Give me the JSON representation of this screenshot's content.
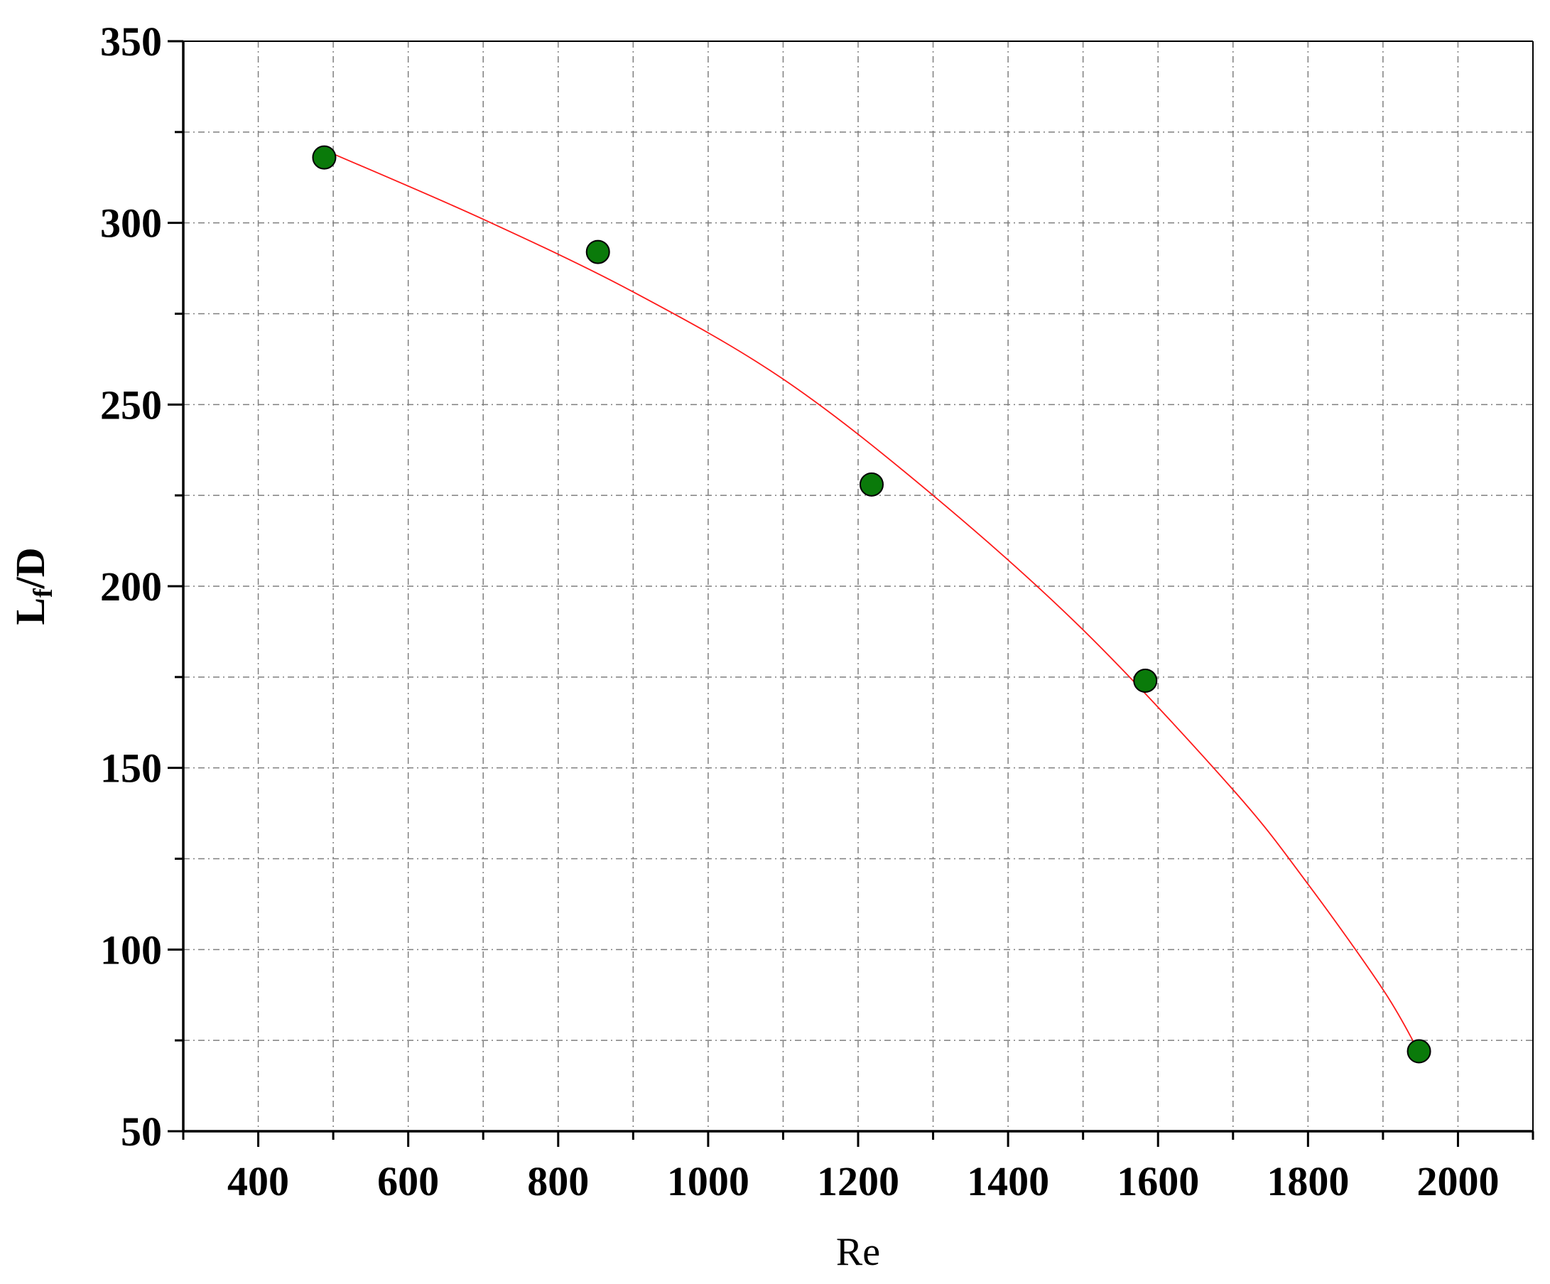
{
  "chart_data": {
    "type": "scatter",
    "title": "",
    "xlabel": "Re",
    "ylabel": {
      "main": "L",
      "subscript": "f",
      "rest": "/D"
    },
    "xlim": [
      300,
      2100
    ],
    "ylim": [
      50,
      350
    ],
    "x_major_ticks": [
      400,
      600,
      800,
      1000,
      1200,
      1400,
      1600,
      1800,
      2000
    ],
    "x_minor_ticks": [
      300,
      500,
      700,
      900,
      1100,
      1300,
      1500,
      1700,
      1900,
      2100
    ],
    "y_major_ticks": [
      50,
      100,
      150,
      200,
      250,
      300,
      350
    ],
    "y_minor_ticks": [
      75,
      125,
      175,
      225,
      275,
      325
    ],
    "grid": true,
    "legend": "none",
    "series": [
      {
        "values": [
          {
            "x": 488,
            "y": 318
          },
          {
            "x": 853,
            "y": 292
          },
          {
            "x": 1218,
            "y": 228
          },
          {
            "x": 1583,
            "y": 174
          },
          {
            "x": 1948,
            "y": 72
          }
        ]
      }
    ],
    "fit_curve": {
      "points": [
        {
          "x": 500,
          "y": 319
        },
        {
          "x": 700,
          "y": 301
        },
        {
          "x": 900,
          "y": 281
        },
        {
          "x": 1100,
          "y": 257
        },
        {
          "x": 1300,
          "y": 225
        },
        {
          "x": 1500,
          "y": 188
        },
        {
          "x": 1700,
          "y": 144
        },
        {
          "x": 1800,
          "y": 118
        },
        {
          "x": 1900,
          "y": 89
        },
        {
          "x": 1945,
          "y": 73
        }
      ]
    },
    "colors": {
      "point_fill": "#0a7a0a",
      "fit_line": "#ff1a1a",
      "grid": "#7f7f7f",
      "axis": "#000000"
    }
  }
}
